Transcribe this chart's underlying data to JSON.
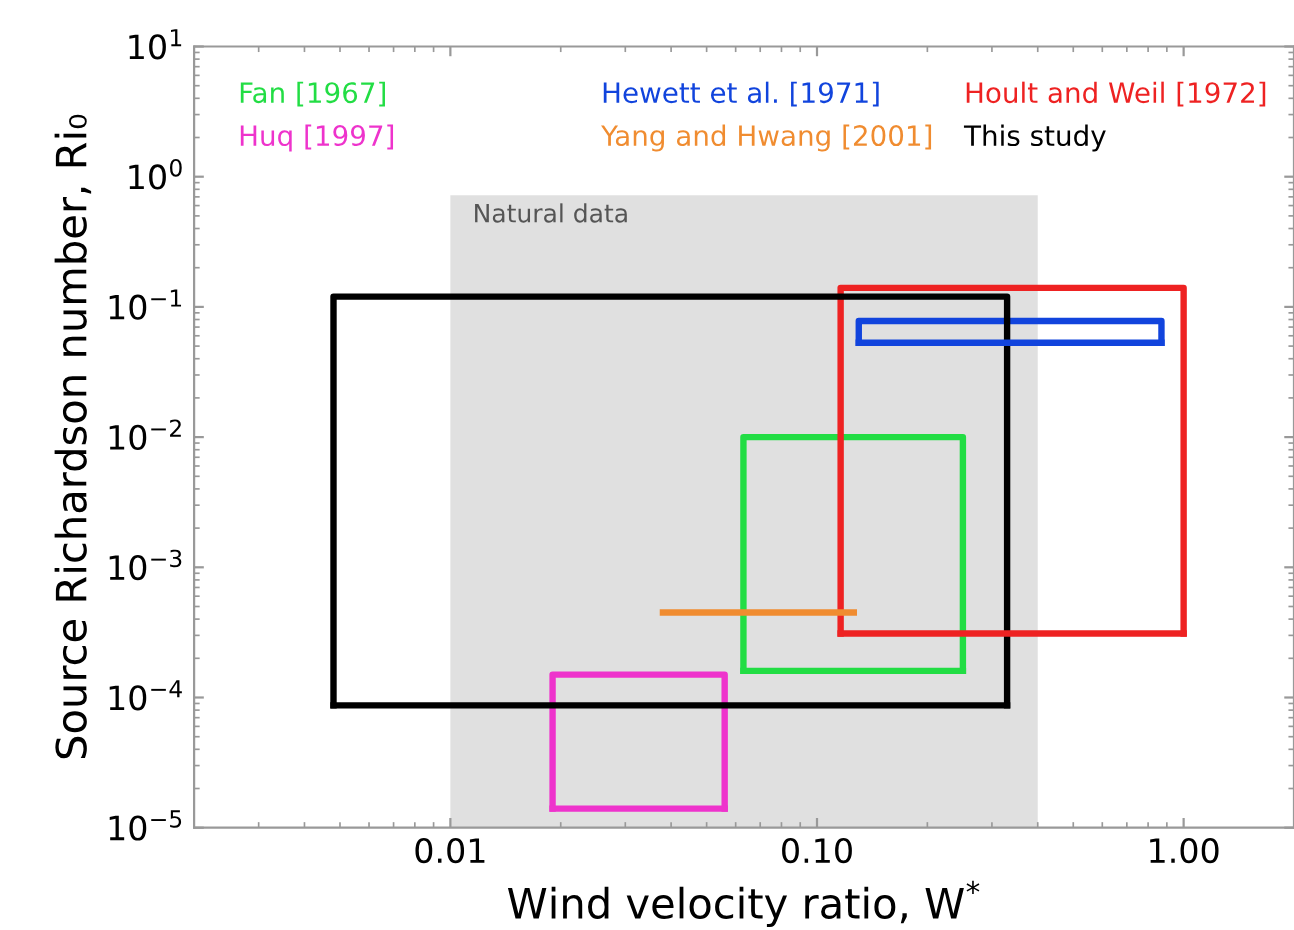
{
  "chart_data": {
    "type": "line",
    "xlabel": "Wind velocity ratio, W$^{*}$",
    "ylabel": "Source Richardson number, Ri₀",
    "log": "xy",
    "xlim": [
      0.002,
      2
    ],
    "ylim": [
      1e-05,
      10
    ],
    "xticks": [
      {
        "value": 0.01,
        "label": "0.01"
      },
      {
        "value": 0.1,
        "label": "0.10"
      },
      {
        "value": 1,
        "label": "1.00"
      }
    ],
    "yticks": [
      {
        "value": 1e-05,
        "label": "10$^{−5}$"
      },
      {
        "value": 0.0001,
        "label": "10$^{−4}$"
      },
      {
        "value": 0.001,
        "label": "10$^{−3}$"
      },
      {
        "value": 0.01,
        "label": "10$^{−2}$"
      },
      {
        "value": 0.1,
        "label": "10$^{−1}$"
      },
      {
        "value": 1,
        "label": "10$^{0}$"
      },
      {
        "value": 10,
        "label": "10$^{1}$"
      }
    ],
    "grid": false,
    "legend": "top",
    "marker": "none",
    "line_style": "solid",
    "series": [
      {
        "name": "Fan [1967]",
        "color": "#22dd44",
        "x": [
          0.063,
          0.063,
          0.25,
          0.25
        ],
        "values": [
          0.00016,
          0.01,
          0.01,
          0.00016
        ]
      },
      {
        "name": "Hewett et al. [1971]",
        "color": "#1144dd",
        "x": [
          0.13,
          0.13,
          0.87,
          0.87
        ],
        "values": [
          0.053,
          0.078,
          0.078,
          0.053
        ]
      },
      {
        "name": "Hoult and Weil [1972]",
        "color": "#ee2222",
        "x": [
          0.116,
          0.116,
          1.0,
          1.0
        ],
        "values": [
          0.00031,
          0.14,
          0.14,
          0.00031
        ]
      },
      {
        "name": "Huq [1997]",
        "color": "#ee33cc",
        "x": [
          0.019,
          0.019,
          0.056,
          0.056
        ],
        "values": [
          1.4e-05,
          0.00015,
          0.00015,
          1.4e-05
        ]
      },
      {
        "name": "Yang and Hwang [2001]",
        "color": "#f08c30",
        "x": [
          0.038,
          0.126
        ],
        "values": [
          0.00045,
          0.00045
        ]
      },
      {
        "name": "This study",
        "color": "#000000",
        "x": [
          0.0048,
          0.0048,
          0.33,
          0.33
        ],
        "values": [
          8.7e-05,
          0.12,
          0.12,
          8.7e-05
        ]
      },
      {
        "color": "#22dd44",
        "x": [
          0.063,
          0.25
        ],
        "values": [
          0.00016,
          0.00016
        ]
      },
      {
        "color": "#1144dd",
        "x": [
          0.13,
          0.87
        ],
        "values": [
          0.053,
          0.053
        ]
      },
      {
        "color": "#ee2222",
        "x": [
          0.116,
          1.0
        ],
        "values": [
          0.00031,
          0.00031
        ]
      },
      {
        "color": "#ee33cc",
        "x": [
          0.019,
          0.056
        ],
        "values": [
          1.4e-05,
          1.4e-05
        ]
      },
      {
        "color": "#000000",
        "x": [
          0.0048,
          0.33
        ],
        "values": [
          8.7e-05,
          8.7e-05
        ]
      },
      {
        "type": "area",
        "name": "Natural data",
        "color": "#e0e0e0",
        "x": [
          0.01,
          0.4
        ],
        "values": [
          0.72,
          0.72
        ]
      }
    ]
  }
}
